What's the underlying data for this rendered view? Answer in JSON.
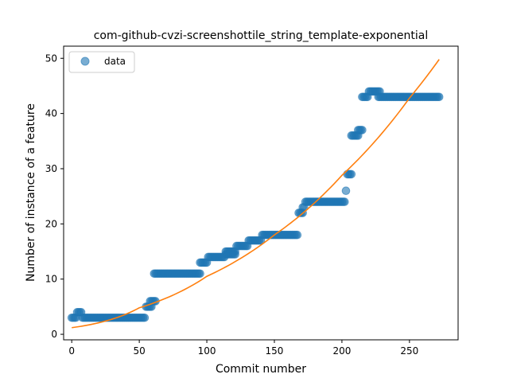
{
  "chart_data": {
    "type": "scatter",
    "title": "com-github-cvzi-screenshottile_string_template-exponential",
    "xlabel": "Commit number",
    "ylabel": "Number of instance of a feature",
    "xlim": [
      -6,
      286
    ],
    "ylim": [
      -1,
      52.2
    ],
    "xticks": [
      0,
      50,
      100,
      150,
      200,
      250
    ],
    "yticks": [
      0,
      10,
      20,
      30,
      40,
      50
    ],
    "grid": false,
    "legend": {
      "position": "top-left",
      "entries": [
        "data"
      ]
    },
    "colors": {
      "data": "#1f77b4",
      "fit": "#ff7f0e"
    },
    "series": [
      {
        "name": "data",
        "style": "markers",
        "segments": [
          {
            "x_start": 0,
            "x_end": 3,
            "y": 3
          },
          {
            "x_start": 4,
            "x_end": 7,
            "y": 4
          },
          {
            "x_start": 8,
            "x_end": 54,
            "y": 3
          },
          {
            "x_start": 55,
            "x_end": 59,
            "y": 5
          },
          {
            "x_start": 58,
            "x_end": 62,
            "y": 6
          },
          {
            "x_start": 61,
            "x_end": 95,
            "y": 11
          },
          {
            "x_start": 95,
            "x_end": 100,
            "y": 13
          },
          {
            "x_start": 101,
            "x_end": 113,
            "y": 14
          },
          {
            "x_start": 114,
            "x_end": 121,
            "y": 15
          },
          {
            "x_start": 114,
            "x_end": 121,
            "y": 14.5
          },
          {
            "x_start": 122,
            "x_end": 130,
            "y": 16
          },
          {
            "x_start": 131,
            "x_end": 140,
            "y": 17
          },
          {
            "x_start": 141,
            "x_end": 167,
            "y": 18
          },
          {
            "x_start": 168,
            "x_end": 171,
            "y": 22
          },
          {
            "x_start": 171,
            "x_end": 172,
            "y": 23
          },
          {
            "x_start": 173,
            "x_end": 202,
            "y": 24
          },
          {
            "x_start": 203,
            "x_end": 203,
            "y": 26
          },
          {
            "x_start": 204,
            "x_end": 207,
            "y": 29
          },
          {
            "x_start": 207,
            "x_end": 212,
            "y": 36
          },
          {
            "x_start": 212,
            "x_end": 215,
            "y": 37
          },
          {
            "x_start": 215,
            "x_end": 219,
            "y": 43
          },
          {
            "x_start": 220,
            "x_end": 228,
            "y": 44
          },
          {
            "x_start": 227,
            "x_end": 272,
            "y": 43
          }
        ]
      },
      {
        "name": "fit",
        "style": "line",
        "model": "exponential",
        "x_range": [
          0,
          272
        ],
        "points": [
          [
            0,
            1.2
          ],
          [
            50,
            4.8
          ],
          [
            100,
            10.5
          ],
          [
            150,
            18.0
          ],
          [
            200,
            28.8
          ],
          [
            250,
            42.8
          ],
          [
            272,
            49.8
          ]
        ]
      }
    ]
  }
}
